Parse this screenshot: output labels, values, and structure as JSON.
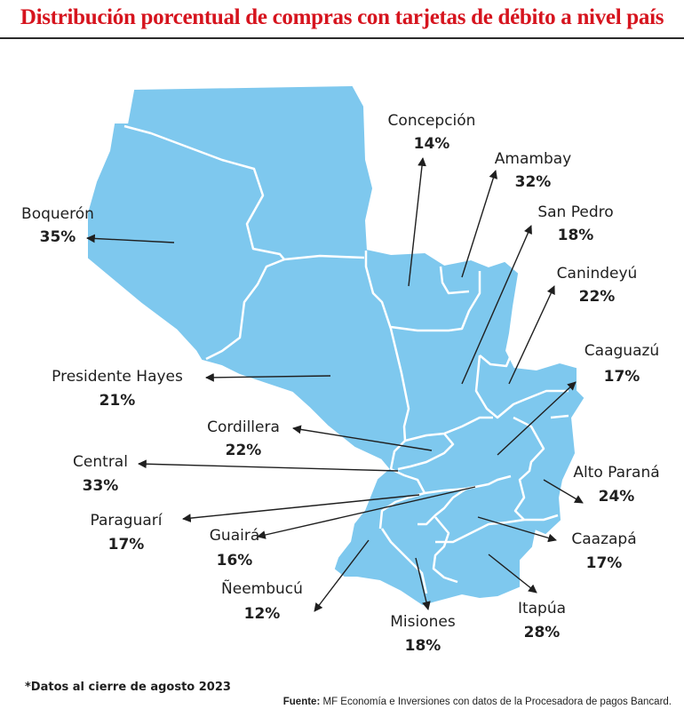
{
  "title": "Distribución porcentual de compras con tarjetas de débito a nivel país",
  "footnote": "*Datos al cierre de agosto 2023",
  "source": {
    "label": "Fuente:",
    "text": "MF Economía e Inversiones con datos de la Procesadora de pagos Bancard."
  },
  "colors": {
    "title": "#d6141e",
    "land": "#7ec8ee",
    "border": "#ffffff"
  },
  "departments": [
    {
      "id": "boqueron",
      "name": "Boquerón",
      "value": "35%"
    },
    {
      "id": "concepcion",
      "name": "Concepción",
      "value": "14%"
    },
    {
      "id": "amambay",
      "name": "Amambay",
      "value": "32%"
    },
    {
      "id": "san-pedro",
      "name": "San Pedro",
      "value": "18%"
    },
    {
      "id": "canindeyu",
      "name": "Canindeyú",
      "value": "22%"
    },
    {
      "id": "caaguazu",
      "name": "Caaguazú",
      "value": "17%"
    },
    {
      "id": "presidente-hayes",
      "name": "Presidente Hayes",
      "value": "21%"
    },
    {
      "id": "cordillera",
      "name": "Cordillera",
      "value": "22%"
    },
    {
      "id": "central",
      "name": "Central",
      "value": "33%"
    },
    {
      "id": "alto-parana",
      "name": "Alto Paraná",
      "value": "24%"
    },
    {
      "id": "paraguari",
      "name": "Paraguarí",
      "value": "17%"
    },
    {
      "id": "guaira",
      "name": "Guairá",
      "value": "16%"
    },
    {
      "id": "caazapa",
      "name": "Caazapá",
      "value": "17%"
    },
    {
      "id": "neembucu",
      "name": "Ñeembucú",
      "value": "12%"
    },
    {
      "id": "misiones",
      "name": "Misiones",
      "value": "18%"
    },
    {
      "id": "itapua",
      "name": "Itapúa",
      "value": "28%"
    }
  ]
}
